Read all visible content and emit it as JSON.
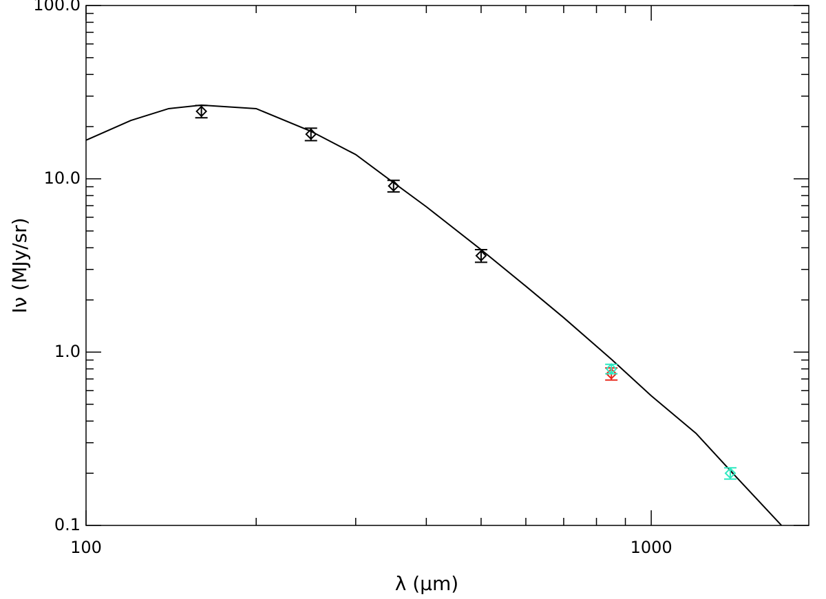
{
  "chart_data": {
    "type": "scatter",
    "x_label": "λ (μm)",
    "y_label": "Iν (MJy/sr)",
    "xscale": "log",
    "yscale": "log",
    "xlim": [
      100,
      1900
    ],
    "ylim": [
      0.1,
      100
    ],
    "xticks": [
      100,
      1000
    ],
    "xminor_ticks": [
      200,
      300,
      400,
      500,
      600,
      700,
      800,
      900
    ],
    "yticks": [
      0.1,
      {
        "value": 1,
        "label": "1.0"
      },
      {
        "value": 10,
        "label": "10.0"
      },
      {
        "value": 100,
        "label": "100.0"
      }
    ],
    "yminor_ticks": [
      0.2,
      0.3,
      0.4,
      0.5,
      0.6,
      0.7,
      0.8,
      0.9,
      2,
      3,
      4,
      5,
      6,
      7,
      8,
      9,
      20,
      30,
      40,
      50,
      60,
      70,
      80,
      90
    ],
    "series": [
      {
        "color": "#000000",
        "x": [
          160,
          250,
          350,
          500
        ],
        "values": [
          24.5,
          18.1,
          9.1,
          3.6
        ],
        "errors": [
          2.0,
          1.5,
          0.7,
          0.3
        ]
      },
      {
        "color": "#e8291c",
        "x": [
          850
        ],
        "values": [
          0.75
        ],
        "errors": [
          0.06
        ]
      },
      {
        "color": "#2ee8c0",
        "x": [
          850,
          1380
        ],
        "values": [
          0.8,
          0.2
        ],
        "errors": [
          0.05,
          0.015
        ]
      }
    ],
    "model": {
      "color": "#000000",
      "x": [
        100,
        120,
        140,
        160,
        200,
        250,
        300,
        350,
        400,
        500,
        600,
        700,
        850,
        1000,
        1200,
        1400,
        1700
      ],
      "values": [
        16.7,
        21.7,
        25.4,
        26.6,
        25.4,
        18.8,
        13.8,
        9.5,
        6.9,
        3.9,
        2.4,
        1.58,
        0.91,
        0.56,
        0.34,
        0.197,
        0.1
      ]
    }
  }
}
